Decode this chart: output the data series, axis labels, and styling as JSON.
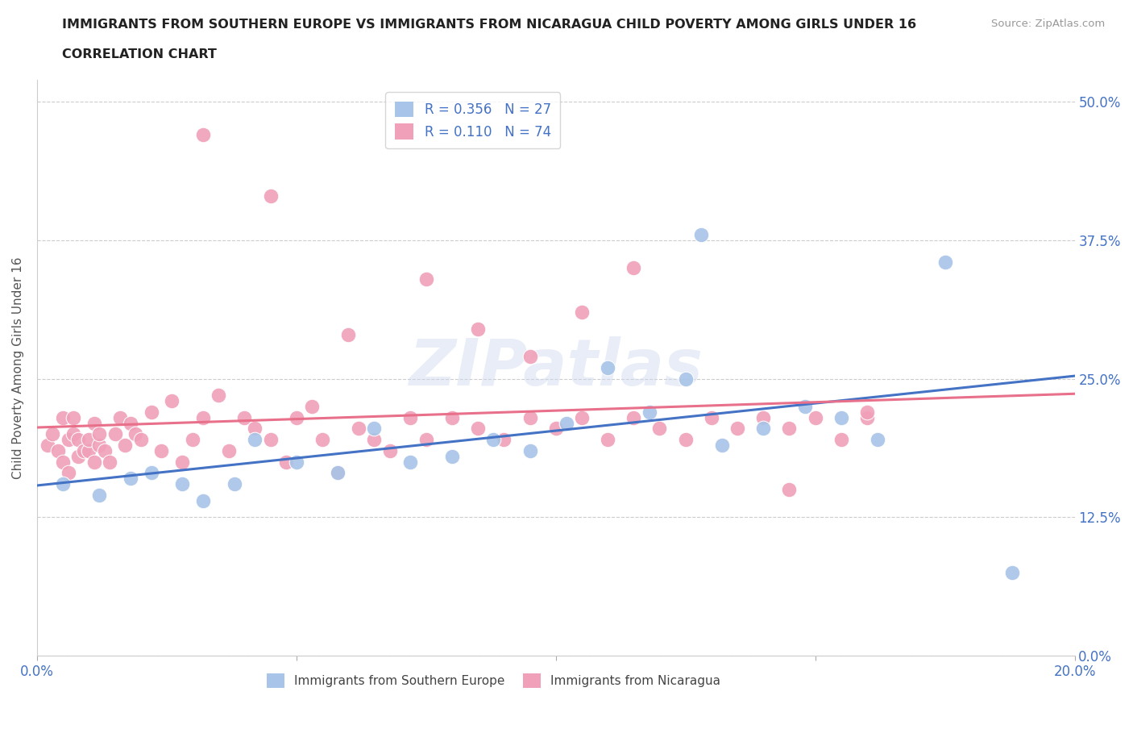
{
  "title_line1": "IMMIGRANTS FROM SOUTHERN EUROPE VS IMMIGRANTS FROM NICARAGUA CHILD POVERTY AMONG GIRLS UNDER 16",
  "title_line2": "CORRELATION CHART",
  "source_text": "Source: ZipAtlas.com",
  "ylabel": "Child Poverty Among Girls Under 16",
  "watermark": "ZIPatlas",
  "r_southern": 0.356,
  "n_southern": 27,
  "r_nicaragua": 0.11,
  "n_nicaragua": 74,
  "color_southern": "#a8c4e8",
  "color_nicaragua": "#f0a0b8",
  "color_line_southern": "#4472c4",
  "color_line_nicaragua": "#e8708a",
  "color_text_blue": "#4472c4",
  "legend_label_southern": "Immigrants from Southern Europe",
  "legend_label_nicaragua": "Immigrants from Nicaragua",
  "xlim": [
    0.0,
    0.2
  ],
  "ylim": [
    0.0,
    0.52
  ],
  "ytick_vals": [
    0.0,
    0.125,
    0.25,
    0.375,
    0.5
  ],
  "ytick_labels": [
    "0.0%",
    "12.5%",
    "25.0%",
    "37.5%",
    "50.0%"
  ],
  "xtick_vals": [
    0.0,
    0.05,
    0.1,
    0.15,
    0.2
  ],
  "xtick_labels": [
    "0.0%",
    "",
    "",
    "",
    "20.0%"
  ],
  "southern_x": [
    0.005,
    0.012,
    0.018,
    0.022,
    0.028,
    0.032,
    0.038,
    0.042,
    0.05,
    0.058,
    0.065,
    0.072,
    0.08,
    0.088,
    0.095,
    0.102,
    0.11,
    0.118,
    0.125,
    0.132,
    0.14,
    0.148,
    0.155,
    0.162,
    0.128,
    0.175,
    0.188
  ],
  "southern_y": [
    0.155,
    0.145,
    0.16,
    0.165,
    0.155,
    0.14,
    0.155,
    0.195,
    0.175,
    0.165,
    0.205,
    0.175,
    0.18,
    0.195,
    0.185,
    0.21,
    0.26,
    0.22,
    0.25,
    0.19,
    0.205,
    0.225,
    0.215,
    0.195,
    0.38,
    0.355,
    0.075
  ],
  "nicaragua_x": [
    0.002,
    0.003,
    0.004,
    0.005,
    0.005,
    0.006,
    0.006,
    0.007,
    0.007,
    0.008,
    0.008,
    0.009,
    0.01,
    0.01,
    0.011,
    0.011,
    0.012,
    0.012,
    0.013,
    0.014,
    0.015,
    0.016,
    0.017,
    0.018,
    0.019,
    0.02,
    0.022,
    0.024,
    0.026,
    0.028,
    0.03,
    0.032,
    0.035,
    0.037,
    0.04,
    0.042,
    0.045,
    0.048,
    0.05,
    0.053,
    0.055,
    0.058,
    0.062,
    0.065,
    0.068,
    0.072,
    0.075,
    0.08,
    0.085,
    0.09,
    0.095,
    0.1,
    0.105,
    0.11,
    0.115,
    0.12,
    0.125,
    0.13,
    0.135,
    0.14,
    0.145,
    0.15,
    0.155,
    0.16,
    0.032,
    0.045,
    0.06,
    0.075,
    0.085,
    0.095,
    0.105,
    0.115,
    0.145,
    0.16
  ],
  "nicaragua_y": [
    0.19,
    0.2,
    0.185,
    0.175,
    0.215,
    0.195,
    0.165,
    0.2,
    0.215,
    0.18,
    0.195,
    0.185,
    0.185,
    0.195,
    0.175,
    0.21,
    0.19,
    0.2,
    0.185,
    0.175,
    0.2,
    0.215,
    0.19,
    0.21,
    0.2,
    0.195,
    0.22,
    0.185,
    0.23,
    0.175,
    0.195,
    0.215,
    0.235,
    0.185,
    0.215,
    0.205,
    0.195,
    0.175,
    0.215,
    0.225,
    0.195,
    0.165,
    0.205,
    0.195,
    0.185,
    0.215,
    0.195,
    0.215,
    0.205,
    0.195,
    0.215,
    0.205,
    0.215,
    0.195,
    0.215,
    0.205,
    0.195,
    0.215,
    0.205,
    0.215,
    0.205,
    0.215,
    0.195,
    0.215,
    0.47,
    0.415,
    0.29,
    0.34,
    0.295,
    0.27,
    0.31,
    0.35,
    0.15,
    0.22
  ]
}
